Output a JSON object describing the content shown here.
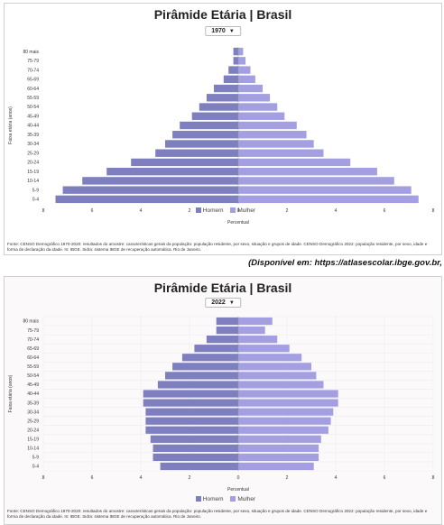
{
  "caption": "(Disponível em: https://atlasescolar.ibge.gov.br,",
  "colors": {
    "homem": "#7d7fbf",
    "mulher": "#a49fe0"
  },
  "chart_data": [
    {
      "type": "bar",
      "title": "Pirâmide Etária | Brasil",
      "year": "1970",
      "xlabel": "Percentual",
      "ylabel": "Faixa etária (anos)",
      "xlim": [
        -8,
        8
      ],
      "xticks": [
        "8",
        "6",
        "4",
        "2",
        "0",
        "2",
        "4",
        "6",
        "8"
      ],
      "grid": false,
      "legend_position": "bottom",
      "categories": [
        "80 mais",
        "75-79",
        "70-74",
        "65-69",
        "60-64",
        "55-59",
        "50-54",
        "45-49",
        "40-44",
        "35-39",
        "30-34",
        "25-29",
        "20-24",
        "15-19",
        "10-14",
        "5-9",
        "0-4"
      ],
      "series": [
        {
          "name": "Homem",
          "values": [
            0.2,
            0.2,
            0.4,
            0.6,
            1.0,
            1.3,
            1.6,
            1.9,
            2.4,
            2.7,
            3.0,
            3.4,
            4.4,
            5.4,
            6.4,
            7.2,
            7.5
          ]
        },
        {
          "name": "Mulher",
          "values": [
            0.2,
            0.3,
            0.5,
            0.7,
            1.0,
            1.3,
            1.6,
            1.9,
            2.4,
            2.8,
            3.1,
            3.5,
            4.6,
            5.7,
            6.4,
            7.1,
            7.4
          ]
        }
      ],
      "footnote": "Fonte: CENSO Demográfico 1970-2020: resultados do amostre: características gerais da população: população residente, por sexo, situação e grupos de idade. CENSO Demográfico 2022: população residente, por sexo, idade e forma de declaração da idade. In: IBGE. Sidra: sistema IBGE de recuperação automática. Rio de Janeiro."
    },
    {
      "type": "bar",
      "title": "Pirâmide Etária | Brasil",
      "year": "2022",
      "xlabel": "Percentual",
      "ylabel": "Faixa etária (anos)",
      "xlim": [
        -8,
        8
      ],
      "xticks": [
        "8",
        "6",
        "4",
        "2",
        "0",
        "2",
        "4",
        "6",
        "8"
      ],
      "grid": true,
      "legend_position": "bottom",
      "categories": [
        "80 mais",
        "75-79",
        "70-74",
        "65-69",
        "60-64",
        "55-59",
        "50-54",
        "45-49",
        "40-44",
        "35-39",
        "30-34",
        "25-29",
        "20-24",
        "15-19",
        "10-14",
        "5-9",
        "0-4"
      ],
      "series": [
        {
          "name": "Homem",
          "values": [
            0.9,
            0.9,
            1.3,
            1.8,
            2.3,
            2.7,
            3.0,
            3.3,
            3.9,
            3.9,
            3.8,
            3.8,
            3.8,
            3.6,
            3.5,
            3.5,
            3.2
          ]
        },
        {
          "name": "Mulher",
          "values": [
            1.4,
            1.1,
            1.6,
            2.1,
            2.6,
            3.0,
            3.2,
            3.5,
            4.1,
            4.1,
            3.9,
            3.8,
            3.7,
            3.4,
            3.3,
            3.3,
            3.1
          ]
        }
      ],
      "footnote": "Fonte: CENSO Demográfico 1970-2020: resultados do amostre: características gerais da população: população residente, por sexo, situação e grupos de idade. CENSO Demográfico 2022: população residente, por sexo, idade e forma de declaração da idade. In: IBGE. Sidra: sistema IBGE de recuperação automática. Rio de Janeiro."
    }
  ]
}
